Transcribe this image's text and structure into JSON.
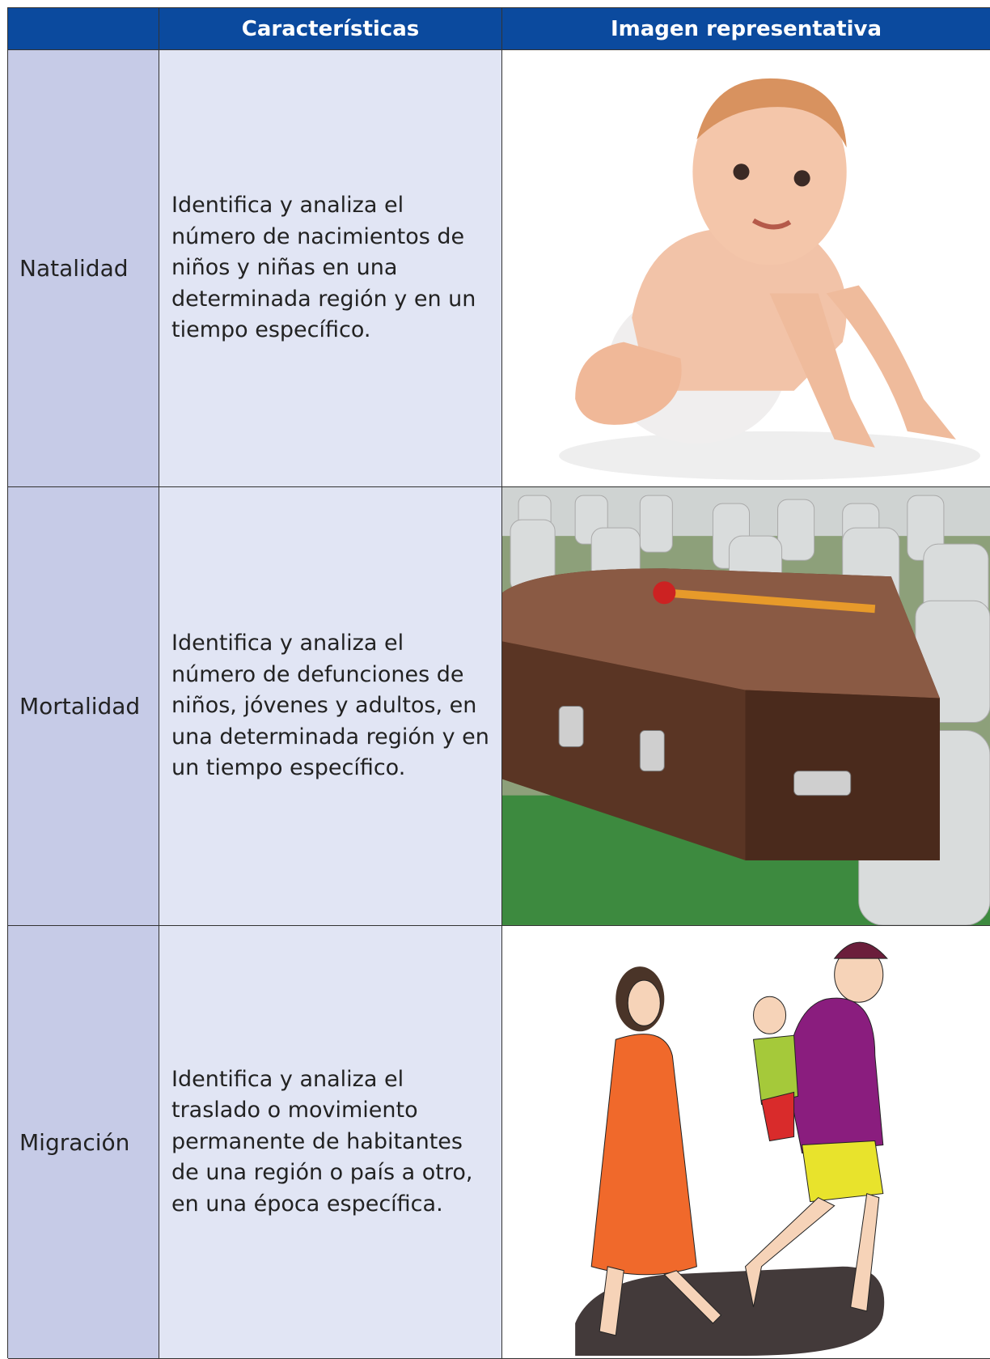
{
  "table": {
    "headers": [
      "Características",
      "Imagen representativa"
    ],
    "rows": [
      {
        "label": "Natalidad",
        "description": "Identifica y analiza el número de nacimientos de niños y niñas en una determinada región y en un tiempo específico."
      },
      {
        "label": "Mortalidad",
        "description": "Identifica y analiza el número de defunciones de niños, jóvenes y adultos, en una determinada región y en un tiempo específico."
      },
      {
        "label": "Migración",
        "description": "Identifica y analiza el traslado o movimiento permanente de habitantes de una región o país a otro, en una época específica."
      }
    ]
  }
}
